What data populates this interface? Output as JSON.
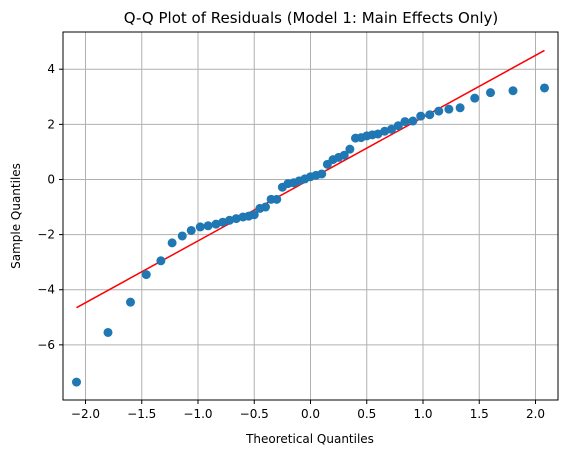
{
  "chart_data": {
    "type": "scatter",
    "title": "Q-Q Plot of Residuals (Model 1: Main Effects Only)",
    "xlabel": "Theoretical Quantiles",
    "ylabel": "Sample Quantiles",
    "xlim": [
      -2.2,
      2.2
    ],
    "ylim": [
      -8.0,
      5.35
    ],
    "x_ticks": [
      -2.0,
      -1.5,
      -1.0,
      -0.5,
      0.0,
      0.5,
      1.0,
      1.5,
      2.0
    ],
    "x_tick_labels": [
      "−2.0",
      "−1.5",
      "−1.0",
      "−0.5",
      "0.0",
      "0.5",
      "1.0",
      "1.5",
      "2.0"
    ],
    "y_ticks": [
      -6,
      -4,
      -2,
      0,
      2,
      4
    ],
    "y_tick_labels": [
      "−6",
      "−4",
      "−2",
      "0",
      "2",
      "4"
    ],
    "grid": true,
    "colors": {
      "points": "#1f77b4",
      "reference_line": "#ff0000",
      "grid": "#b0b0b0",
      "axes": "#000000"
    },
    "reference_line": {
      "x": [
        -2.08,
        2.08
      ],
      "y": [
        -4.65,
        4.68
      ]
    },
    "series": [
      {
        "points": [
          [
            -2.08,
            -7.35
          ],
          [
            -1.8,
            -5.55
          ],
          [
            -1.6,
            -4.45
          ],
          [
            -1.46,
            -3.45
          ],
          [
            -1.33,
            -2.95
          ],
          [
            -1.23,
            -2.3
          ],
          [
            -1.14,
            -2.05
          ],
          [
            -1.06,
            -1.85
          ],
          [
            -0.98,
            -1.72
          ],
          [
            -0.91,
            -1.68
          ],
          [
            -0.84,
            -1.62
          ],
          [
            -0.78,
            -1.55
          ],
          [
            -0.72,
            -1.48
          ],
          [
            -0.66,
            -1.42
          ],
          [
            -0.6,
            -1.36
          ],
          [
            -0.55,
            -1.33
          ],
          [
            -0.5,
            -1.28
          ],
          [
            -0.45,
            -1.05
          ],
          [
            -0.4,
            -1.0
          ],
          [
            -0.35,
            -0.72
          ],
          [
            -0.3,
            -0.72
          ],
          [
            -0.25,
            -0.28
          ],
          [
            -0.2,
            -0.15
          ],
          [
            -0.15,
            -0.12
          ],
          [
            -0.1,
            -0.05
          ],
          [
            -0.05,
            0.02
          ],
          [
            0.0,
            0.1
          ],
          [
            0.05,
            0.15
          ],
          [
            0.1,
            0.2
          ],
          [
            0.15,
            0.55
          ],
          [
            0.2,
            0.72
          ],
          [
            0.25,
            0.8
          ],
          [
            0.3,
            0.88
          ],
          [
            0.35,
            1.1
          ],
          [
            0.4,
            1.5
          ],
          [
            0.45,
            1.52
          ],
          [
            0.5,
            1.58
          ],
          [
            0.55,
            1.62
          ],
          [
            0.6,
            1.65
          ],
          [
            0.66,
            1.75
          ],
          [
            0.72,
            1.82
          ],
          [
            0.78,
            1.95
          ],
          [
            0.84,
            2.1
          ],
          [
            0.91,
            2.12
          ],
          [
            0.98,
            2.3
          ],
          [
            1.06,
            2.35
          ],
          [
            1.14,
            2.48
          ],
          [
            1.23,
            2.55
          ],
          [
            1.33,
            2.6
          ],
          [
            1.46,
            2.95
          ],
          [
            1.6,
            3.15
          ],
          [
            1.8,
            3.22
          ],
          [
            2.08,
            3.32
          ]
        ]
      }
    ]
  }
}
